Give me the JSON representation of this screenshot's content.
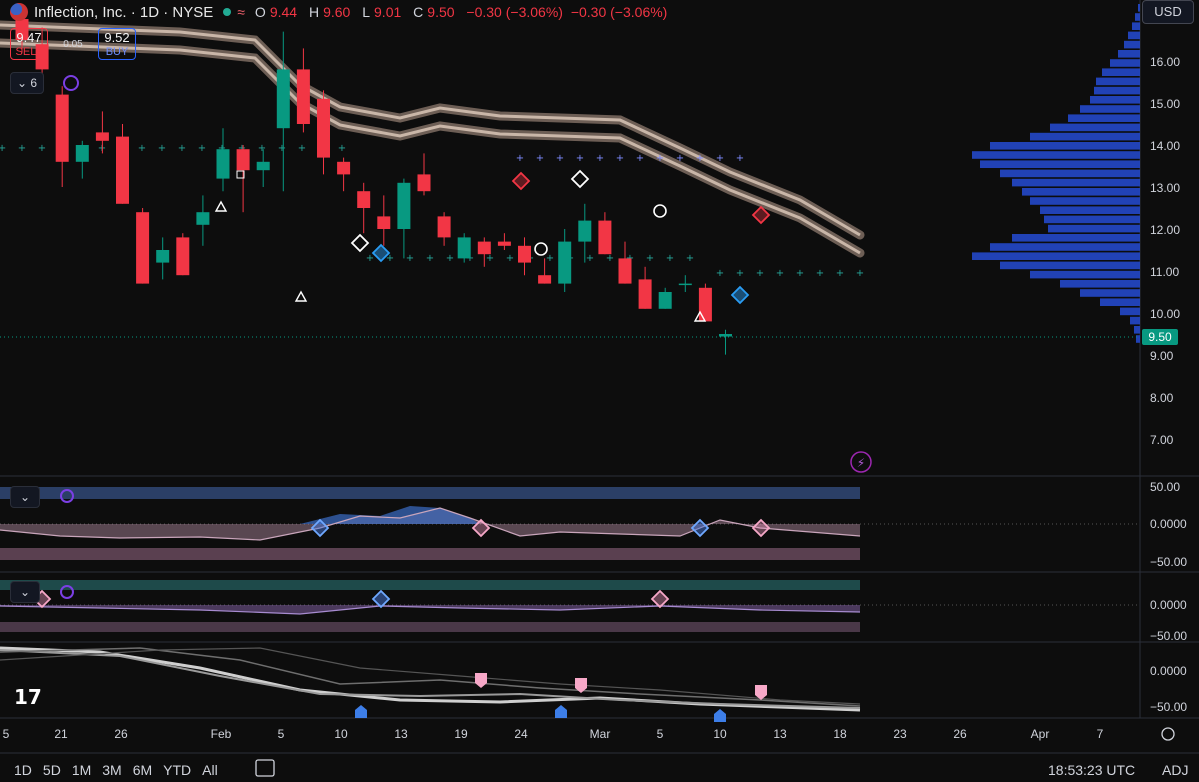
{
  "header": {
    "symbol": "Inflection, Inc. · 1D · NYSE",
    "open_label": "O",
    "open": "9.44",
    "high_label": "H",
    "high": "9.60",
    "low_label": "L",
    "low": "9.01",
    "close_label": "C",
    "close": "9.50",
    "change": "−0.30 (−3.06%)",
    "change2": "−0.30 (−3.06%)"
  },
  "trade": {
    "sell_price": "9.47",
    "sell_label": "SELL",
    "spread": "0.05",
    "buy_price": "9.52",
    "buy_label": "BUY"
  },
  "indicator_count": "6",
  "currency": "USD",
  "last_price_tag": "9.50",
  "timeframes": [
    "1D",
    "5D",
    "1M",
    "3M",
    "6M",
    "YTD",
    "All"
  ],
  "clock": "18:53:23 UTC",
  "adj": "ADJ",
  "colors": {
    "up": "#089981",
    "down": "#f23645",
    "accent": "#2962ff",
    "volume_profile": "#2448c9"
  },
  "chart_data": {
    "type": "candlestick",
    "y_axis": {
      "ticks": [
        "16.00",
        "15.00",
        "14.00",
        "13.00",
        "12.00",
        "11.00",
        "10.00",
        "9.00",
        "8.00",
        "7.00"
      ],
      "range": [
        6.5,
        17.0
      ]
    },
    "x_axis": {
      "ticks": [
        "5",
        "21",
        "26",
        "Feb",
        "5",
        "10",
        "13",
        "19",
        "24",
        "Mar",
        "5",
        "10",
        "13",
        "18",
        "23",
        "26",
        "Apr",
        "7"
      ]
    },
    "candles": [
      {
        "o": 17.0,
        "h": 17.3,
        "l": 16.2,
        "c": 16.5
      },
      {
        "o": 16.4,
        "h": 16.8,
        "l": 15.7,
        "c": 15.8
      },
      {
        "o": 15.2,
        "h": 15.4,
        "l": 13.0,
        "c": 13.6
      },
      {
        "o": 13.6,
        "h": 14.1,
        "l": 13.2,
        "c": 14.0
      },
      {
        "o": 14.3,
        "h": 14.8,
        "l": 13.8,
        "c": 14.1
      },
      {
        "o": 14.2,
        "h": 14.5,
        "l": 12.6,
        "c": 12.6
      },
      {
        "o": 12.4,
        "h": 12.5,
        "l": 10.7,
        "c": 10.7
      },
      {
        "o": 11.2,
        "h": 11.8,
        "l": 10.8,
        "c": 11.5
      },
      {
        "o": 11.8,
        "h": 11.9,
        "l": 10.9,
        "c": 10.9
      },
      {
        "o": 12.1,
        "h": 12.8,
        "l": 11.6,
        "c": 12.4
      },
      {
        "o": 13.2,
        "h": 14.4,
        "l": 12.9,
        "c": 13.9
      },
      {
        "o": 13.9,
        "h": 14.0,
        "l": 12.4,
        "c": 13.4
      },
      {
        "o": 13.4,
        "h": 13.9,
        "l": 13.0,
        "c": 13.6
      },
      {
        "o": 14.4,
        "h": 16.7,
        "l": 12.9,
        "c": 15.8
      },
      {
        "o": 15.8,
        "h": 16.3,
        "l": 14.3,
        "c": 14.5
      },
      {
        "o": 15.1,
        "h": 15.3,
        "l": 13.3,
        "c": 13.7
      },
      {
        "o": 13.6,
        "h": 13.7,
        "l": 12.9,
        "c": 13.3
      },
      {
        "o": 12.9,
        "h": 13.1,
        "l": 11.9,
        "c": 12.5
      },
      {
        "o": 12.3,
        "h": 12.8,
        "l": 11.6,
        "c": 12.0
      },
      {
        "o": 12.0,
        "h": 13.2,
        "l": 11.3,
        "c": 13.1
      },
      {
        "o": 13.3,
        "h": 13.8,
        "l": 12.8,
        "c": 12.9
      },
      {
        "o": 12.3,
        "h": 12.4,
        "l": 11.6,
        "c": 11.8
      },
      {
        "o": 11.3,
        "h": 11.9,
        "l": 11.2,
        "c": 11.8
      },
      {
        "o": 11.7,
        "h": 11.8,
        "l": 11.1,
        "c": 11.4
      },
      {
        "o": 11.7,
        "h": 11.9,
        "l": 11.5,
        "c": 11.6
      },
      {
        "o": 11.6,
        "h": 11.8,
        "l": 10.9,
        "c": 11.2
      },
      {
        "o": 10.9,
        "h": 11.3,
        "l": 10.7,
        "c": 10.7
      },
      {
        "o": 10.7,
        "h": 12.0,
        "l": 10.5,
        "c": 11.7
      },
      {
        "o": 11.7,
        "h": 12.6,
        "l": 11.2,
        "c": 12.2
      },
      {
        "o": 12.2,
        "h": 12.4,
        "l": 11.4,
        "c": 11.4
      },
      {
        "o": 11.3,
        "h": 11.7,
        "l": 10.7,
        "c": 10.7
      },
      {
        "o": 10.8,
        "h": 11.1,
        "l": 10.1,
        "c": 10.1
      },
      {
        "o": 10.1,
        "h": 10.6,
        "l": 10.1,
        "c": 10.5
      },
      {
        "o": 10.7,
        "h": 10.9,
        "l": 10.5,
        "c": 10.7
      },
      {
        "o": 10.6,
        "h": 10.7,
        "l": 9.8,
        "c": 9.8
      },
      {
        "o": 9.44,
        "h": 9.6,
        "l": 9.01,
        "c": 9.5
      }
    ],
    "oscillators": {
      "pane1_ticks": [
        "50.00",
        "0.0000",
        "−50.00"
      ],
      "pane2_ticks": [
        "0.0000",
        "−50.00"
      ],
      "pane3_ticks": [
        "0.0000",
        "−50.00"
      ]
    }
  }
}
